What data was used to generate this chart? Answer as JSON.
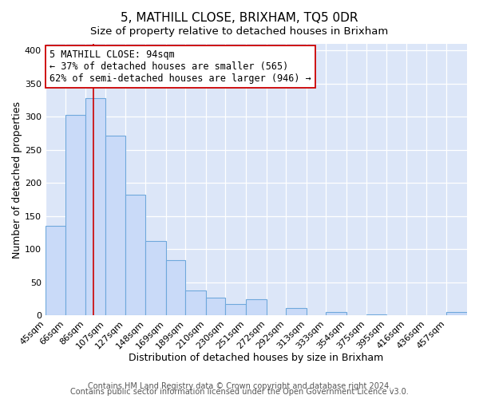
{
  "title": "5, MATHILL CLOSE, BRIXHAM, TQ5 0DR",
  "subtitle": "Size of property relative to detached houses in Brixham",
  "xlabel": "Distribution of detached houses by size in Brixham",
  "ylabel": "Number of detached properties",
  "footer_line1": "Contains HM Land Registry data © Crown copyright and database right 2024.",
  "footer_line2": "Contains public sector information licensed under the Open Government Licence v3.0.",
  "categories": [
    "45sqm",
    "66sqm",
    "86sqm",
    "107sqm",
    "127sqm",
    "148sqm",
    "169sqm",
    "189sqm",
    "210sqm",
    "230sqm",
    "251sqm",
    "272sqm",
    "292sqm",
    "313sqm",
    "333sqm",
    "354sqm",
    "375sqm",
    "395sqm",
    "416sqm",
    "436sqm",
    "457sqm"
  ],
  "values": [
    135,
    303,
    328,
    272,
    182,
    113,
    83,
    38,
    27,
    17,
    25,
    0,
    11,
    0,
    5,
    0,
    2,
    0,
    0,
    0,
    5
  ],
  "bar_color": "#c9daf8",
  "bar_edge_color": "#6fa8dc",
  "bar_edge_width": 0.8,
  "property_line_x": 94,
  "bin_edges": [
    45,
    66,
    86,
    107,
    127,
    148,
    169,
    189,
    210,
    230,
    251,
    272,
    292,
    313,
    333,
    354,
    375,
    395,
    416,
    436,
    457,
    478
  ],
  "annotation_line1": "5 MATHILL CLOSE: 94sqm",
  "annotation_line2": "← 37% of detached houses are smaller (565)",
  "annotation_line3": "62% of semi-detached houses are larger (946) →",
  "annotation_box_color": "#ffffff",
  "annotation_box_edge": "#cc0000",
  "red_line_color": "#cc0000",
  "ylim": [
    0,
    410
  ],
  "yticks": [
    0,
    50,
    100,
    150,
    200,
    250,
    300,
    350,
    400
  ],
  "background_color": "#dce6f8",
  "title_fontsize": 11,
  "subtitle_fontsize": 9.5,
  "annotation_fontsize": 8.5,
  "axis_label_fontsize": 9,
  "tick_fontsize": 8,
  "footer_fontsize": 7
}
